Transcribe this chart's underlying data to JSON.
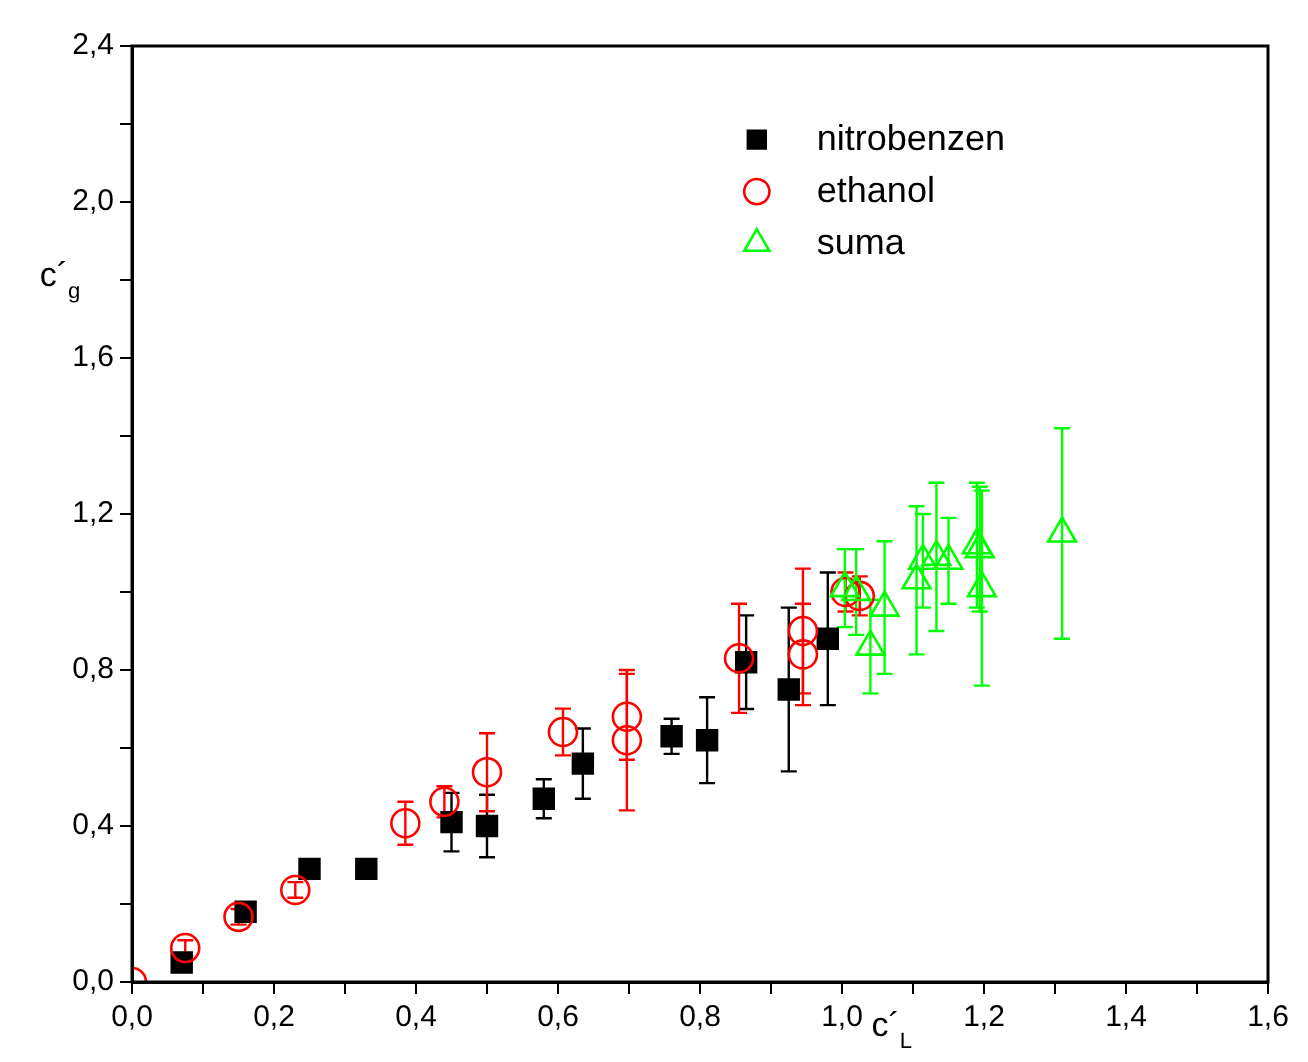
{
  "chart_data": {
    "type": "scatter",
    "xlabel": "c´$_{L}$",
    "ylabel": "c´$_{g}$",
    "legend": "top right",
    "xlim": [
      0,
      1.6
    ],
    "ylim": [
      0,
      2.4
    ],
    "xticks": [
      {
        "value": 0,
        "label": "0,0"
      },
      {
        "value": 0.1,
        "label": null
      },
      {
        "value": 0.2,
        "label": "0,2"
      },
      {
        "value": 0.3,
        "label": null
      },
      {
        "value": 0.4,
        "label": "0,4"
      },
      {
        "value": 0.5,
        "label": null
      },
      {
        "value": 0.6,
        "label": "0,6"
      },
      {
        "value": 0.7,
        "label": null
      },
      {
        "value": 0.8,
        "label": "0,8"
      },
      {
        "value": 0.9,
        "label": null
      },
      {
        "value": 1.0,
        "label": "1,0"
      },
      {
        "value": 1.1,
        "label": null
      },
      {
        "value": 1.2,
        "label": "1,2"
      },
      {
        "value": 1.3,
        "label": null
      },
      {
        "value": 1.4,
        "label": "1,4"
      },
      {
        "value": 1.5,
        "label": null
      },
      {
        "value": 1.6,
        "label": "1,6"
      }
    ],
    "yticks": [
      {
        "value": 0,
        "label": "0,0"
      },
      {
        "value": 0.2,
        "label": null
      },
      {
        "value": 0.4,
        "label": "0,4"
      },
      {
        "value": 0.6,
        "label": null
      },
      {
        "value": 0.8,
        "label": "0,8"
      },
      {
        "value": 1.0,
        "label": null
      },
      {
        "value": 1.2,
        "label": "1,2"
      },
      {
        "value": 1.4,
        "label": null
      },
      {
        "value": 1.6,
        "label": "1,6"
      },
      {
        "value": 1.8,
        "label": null
      },
      {
        "value": 2.0,
        "label": "2,0"
      },
      {
        "value": 2.2,
        "label": null
      },
      {
        "value": 2.4,
        "label": "2,4"
      }
    ],
    "series": [
      {
        "name": "nitrobenzen",
        "color": "#000000",
        "marker": "square",
        "x": [
          0.07,
          0.16,
          0.25,
          0.33,
          0.45,
          0.5,
          0.58,
          0.635,
          0.76,
          0.81,
          0.865,
          0.925,
          0.98
        ],
        "values": [
          0.05,
          0.18,
          0.29,
          0.29,
          0.41,
          0.4,
          0.47,
          0.56,
          0.63,
          0.62,
          0.82,
          0.75,
          0.88
        ],
        "errors": [
          null,
          null,
          null,
          null,
          0.075,
          0.08,
          0.05,
          0.09,
          0.045,
          0.11,
          0.12,
          0.21,
          0.17
        ]
      },
      {
        "name": "ethanol",
        "color": "#ff0000",
        "marker": "circle",
        "x": [
          0.0,
          0.075,
          0.15,
          0.23,
          0.385,
          0.44,
          0.5,
          0.607,
          0.697,
          0.697,
          0.855,
          0.945,
          0.945,
          1.005,
          1.025
        ],
        "values": [
          0.0,
          0.087,
          0.167,
          0.236,
          0.407,
          0.462,
          0.538,
          0.641,
          0.68,
          0.62,
          0.83,
          0.9,
          0.84,
          1.0,
          0.99
        ],
        "errors": [
          null,
          0.02,
          0.02,
          0.02,
          0.055,
          0.04,
          0.1,
          0.06,
          0.11,
          0.18,
          0.14,
          0.16,
          0.13,
          0.05,
          0.05
        ]
      },
      {
        "name": "suma",
        "color": "#00ff00",
        "marker": "triangle",
        "x": [
          1.004,
          1.02,
          1.04,
          1.06,
          1.105,
          1.114,
          1.133,
          1.15,
          1.19,
          1.197,
          1.194,
          1.31
        ],
        "values": [
          1.01,
          1.0,
          0.86,
          0.96,
          1.03,
          1.08,
          1.09,
          1.08,
          1.12,
          1.01,
          1.11,
          1.15
        ],
        "errors": [
          0.1,
          0.11,
          0.12,
          0.17,
          0.19,
          0.12,
          0.19,
          0.11,
          0.16,
          0.25,
          0.16,
          0.27
        ]
      }
    ]
  }
}
